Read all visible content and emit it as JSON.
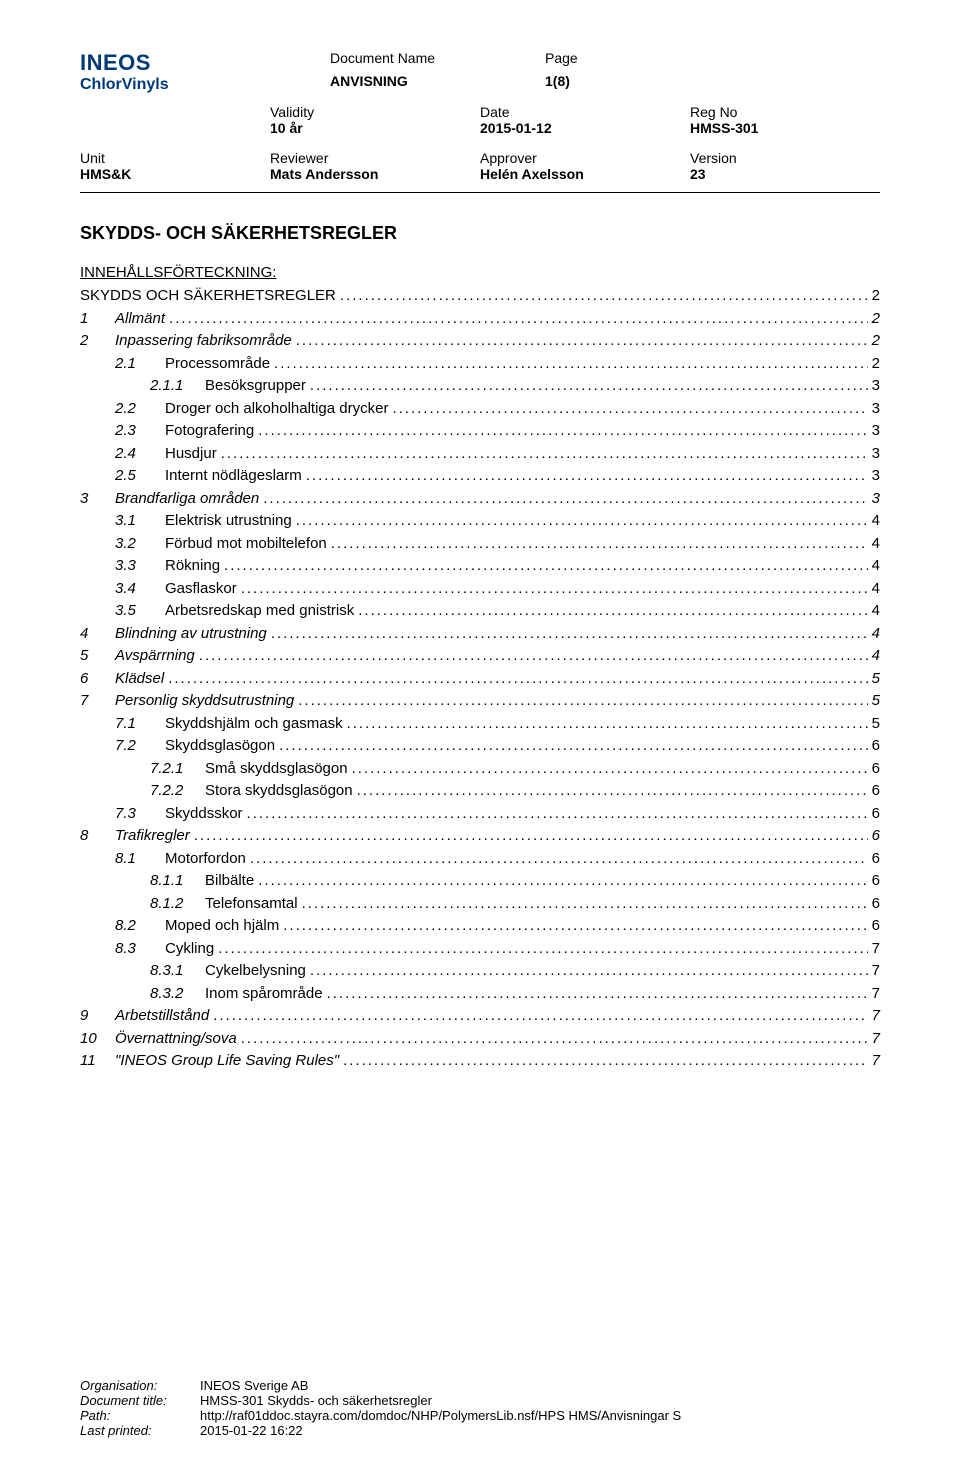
{
  "logo": {
    "top": "INEOS",
    "bottom": "ChlorVinyls"
  },
  "meta": {
    "doc_name_label": "Document Name",
    "page_label": "Page",
    "doc_name_value": "ANVISNING",
    "page_value": "1(8)",
    "validity_label": "Validity",
    "date_label": "Date",
    "reg_no_label": "Reg No",
    "validity_value": "10 år",
    "date_value": "2015-01-12",
    "reg_no_value": "HMSS-301",
    "unit_label": "Unit",
    "reviewer_label": "Reviewer",
    "approver_label": "Approver",
    "version_label": "Version",
    "unit_value": "HMS&K",
    "reviewer_value": "Mats Andersson",
    "approver_value": "Helén Axelsson",
    "version_value": "23"
  },
  "title": "SKYDDS- OCH SÄKERHETSREGLER",
  "subtitle": "INNEHÅLLSFÖRTECKNING:",
  "toc": [
    {
      "level": 0,
      "num": "",
      "label": "SKYDDS OCH SÄKERHETSREGLER",
      "page": "2",
      "italic": false,
      "noNum": true
    },
    {
      "level": 0,
      "num": "1",
      "label": "Allmänt",
      "page": "2",
      "italic": true
    },
    {
      "level": 0,
      "num": "2",
      "label": "Inpassering fabriksområde",
      "page": "2",
      "italic": true
    },
    {
      "level": 1,
      "num": "2.1",
      "label": "Processområde",
      "page": "2"
    },
    {
      "level": 2,
      "num": "2.1.1",
      "label": "Besöksgrupper",
      "page": "3"
    },
    {
      "level": 1,
      "num": "2.2",
      "label": "Droger och alkoholhaltiga drycker",
      "page": "3"
    },
    {
      "level": 1,
      "num": "2.3",
      "label": "Fotografering",
      "page": "3"
    },
    {
      "level": 1,
      "num": "2.4",
      "label": "Husdjur",
      "page": "3"
    },
    {
      "level": 1,
      "num": "2.5",
      "label": "Internt nödlägeslarm",
      "page": "3"
    },
    {
      "level": 0,
      "num": "3",
      "label": "Brandfarliga områden",
      "page": "3",
      "italic": true
    },
    {
      "level": 1,
      "num": "3.1",
      "label": "Elektrisk utrustning",
      "page": "4"
    },
    {
      "level": 1,
      "num": "3.2",
      "label": "Förbud mot mobiltelefon",
      "page": "4"
    },
    {
      "level": 1,
      "num": "3.3",
      "label": "Rökning",
      "page": "4"
    },
    {
      "level": 1,
      "num": "3.4",
      "label": "Gasflaskor",
      "page": "4"
    },
    {
      "level": 1,
      "num": "3.5",
      "label": "Arbetsredskap med gnistrisk",
      "page": "4"
    },
    {
      "level": 0,
      "num": "4",
      "label": "Blindning av utrustning",
      "page": "4",
      "italic": true
    },
    {
      "level": 0,
      "num": "5",
      "label": "Avspärrning",
      "page": "4",
      "italic": true
    },
    {
      "level": 0,
      "num": "6",
      "label": "Klädsel",
      "page": "5",
      "italic": true
    },
    {
      "level": 0,
      "num": "7",
      "label": "Personlig skyddsutrustning",
      "page": "5",
      "italic": true
    },
    {
      "level": 1,
      "num": "7.1",
      "label": "Skyddshjälm och gasmask",
      "page": "5"
    },
    {
      "level": 1,
      "num": "7.2",
      "label": "Skyddsglasögon",
      "page": "6"
    },
    {
      "level": 2,
      "num": "7.2.1",
      "label": "Små skyddsglasögon",
      "page": "6"
    },
    {
      "level": 2,
      "num": "7.2.2",
      "label": "Stora skyddsglasögon",
      "page": "6"
    },
    {
      "level": 1,
      "num": "7.3",
      "label": "Skyddsskor",
      "page": "6"
    },
    {
      "level": 0,
      "num": "8",
      "label": "Trafikregler",
      "page": "6",
      "italic": true
    },
    {
      "level": 1,
      "num": "8.1",
      "label": "Motorfordon",
      "page": "6"
    },
    {
      "level": 2,
      "num": "8.1.1",
      "label": "Bilbälte",
      "page": "6"
    },
    {
      "level": 2,
      "num": "8.1.2",
      "label": "Telefonsamtal",
      "page": "6"
    },
    {
      "level": 1,
      "num": "8.2",
      "label": "Moped och hjälm",
      "page": "6"
    },
    {
      "level": 1,
      "num": "8.3",
      "label": "Cykling",
      "page": "7"
    },
    {
      "level": 2,
      "num": "8.3.1",
      "label": "Cykelbelysning",
      "page": "7"
    },
    {
      "level": 2,
      "num": "8.3.2",
      "label": "Inom spårområde",
      "page": "7"
    },
    {
      "level": 0,
      "num": "9",
      "label": "Arbetstillstånd",
      "page": "7",
      "italic": true
    },
    {
      "level": 0,
      "num": "10",
      "label": "Övernattning/sova",
      "page": "7",
      "italic": true
    },
    {
      "level": 0,
      "num": "11",
      "label": "\"INEOS Group Life Saving Rules\"",
      "page": "7",
      "italic": true
    }
  ],
  "footer": {
    "org_label": "Organisation:",
    "org_value": "INEOS Sverige AB",
    "title_label": "Document title:",
    "title_value": "HMSS-301 Skydds- och säkerhetsregler",
    "path_label": "Path:",
    "path_value": "http://raf01ddoc.stayra.com/domdoc/NHP/PolymersLib.nsf/HPS HMS/Anvisningar S",
    "printed_label": "Last printed:",
    "printed_value": "2015-01-22 16:22"
  }
}
